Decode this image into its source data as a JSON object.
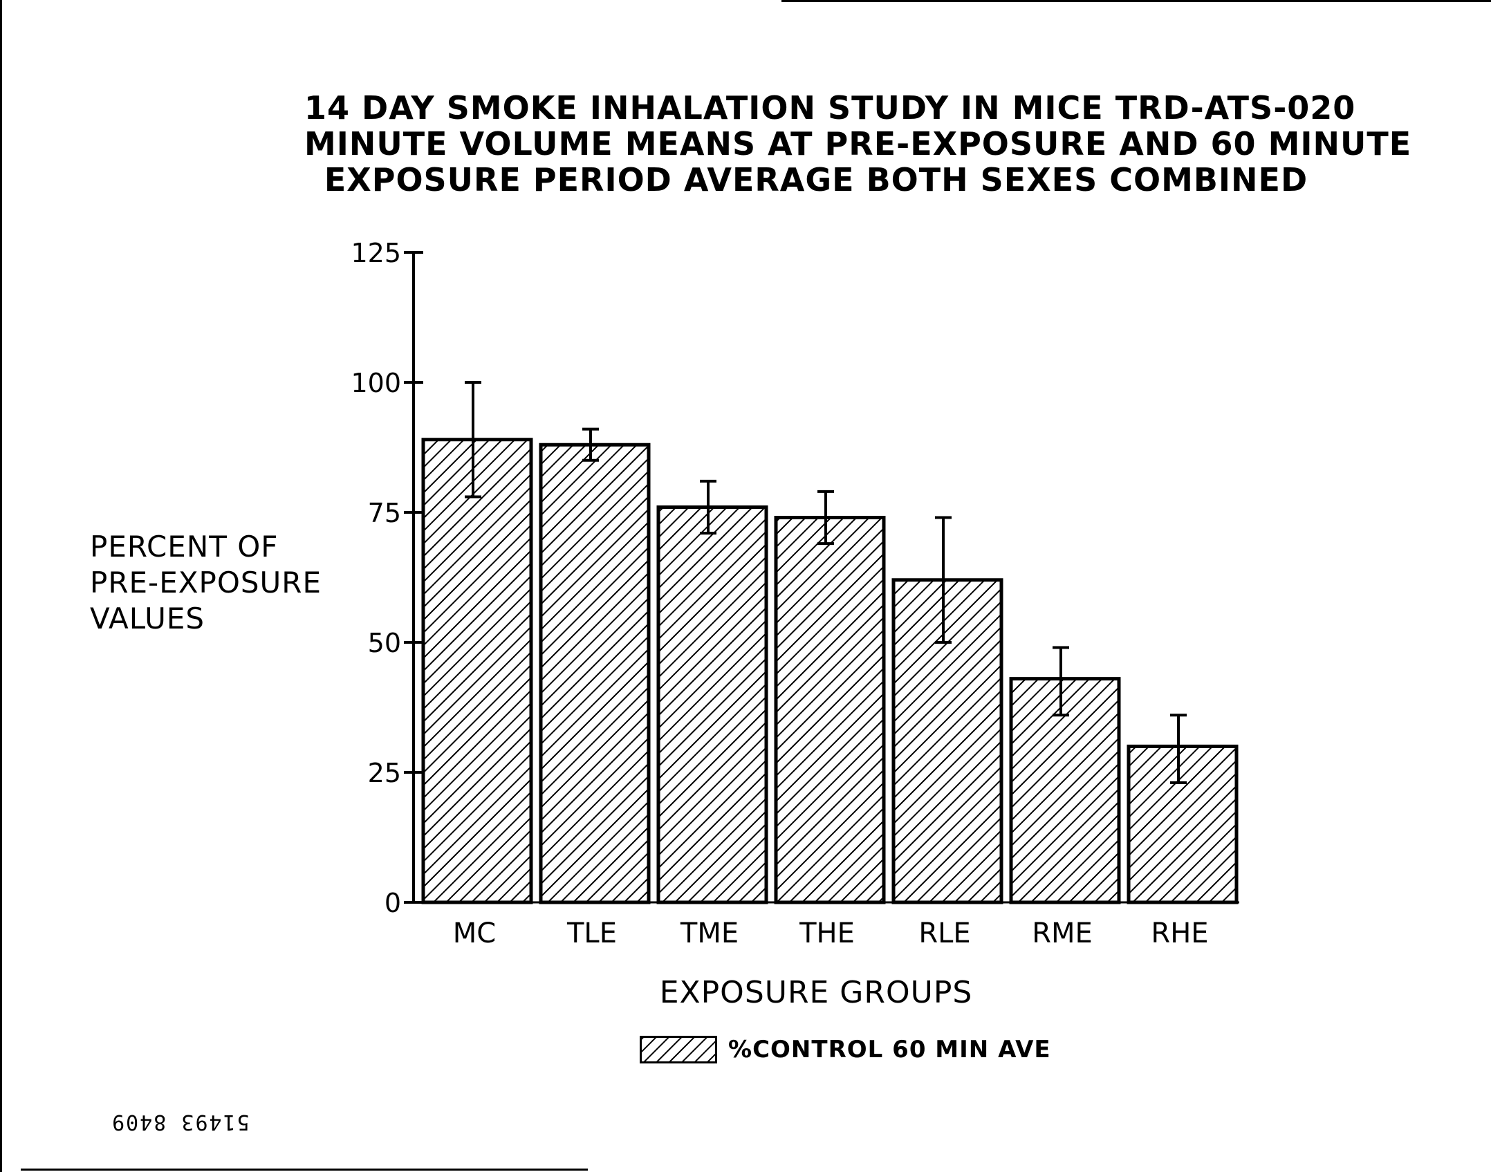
{
  "chart_data": {
    "type": "bar",
    "title_lines": [
      "14 DAY SMOKE INHALATION STUDY IN MICE   TRD-ATS-020",
      "MINUTE VOLUME MEANS AT PRE-EXPOSURE AND 60 MINUTE",
      "EXPOSURE PERIOD AVERAGE    BOTH SEXES COMBINED"
    ],
    "ylabel_lines": [
      "PERCENT OF",
      "PRE-EXPOSURE",
      "VALUES"
    ],
    "xlabel": "EXPOSURE GROUPS",
    "categories": [
      "MC",
      "TLE",
      "TME",
      "THE",
      "RLE",
      "RME",
      "RHE"
    ],
    "series": [
      {
        "name": "%CONTROL 60 MIN AVE",
        "values": [
          89,
          88,
          76,
          74,
          62,
          43,
          30
        ],
        "error_low": [
          78,
          85,
          71,
          69,
          50,
          36,
          23
        ],
        "error_high": [
          100,
          91,
          81,
          79,
          74,
          49,
          36
        ]
      }
    ],
    "ylim": [
      0,
      125
    ],
    "yticks": [
      0,
      25,
      50,
      75,
      100,
      125
    ],
    "bar_fill": "diagonal hatch",
    "legend_position": "bottom-center",
    "grid": false
  },
  "stamp": "51493 8409",
  "colors": {
    "ink": "#000000",
    "background": "#ffffff"
  }
}
